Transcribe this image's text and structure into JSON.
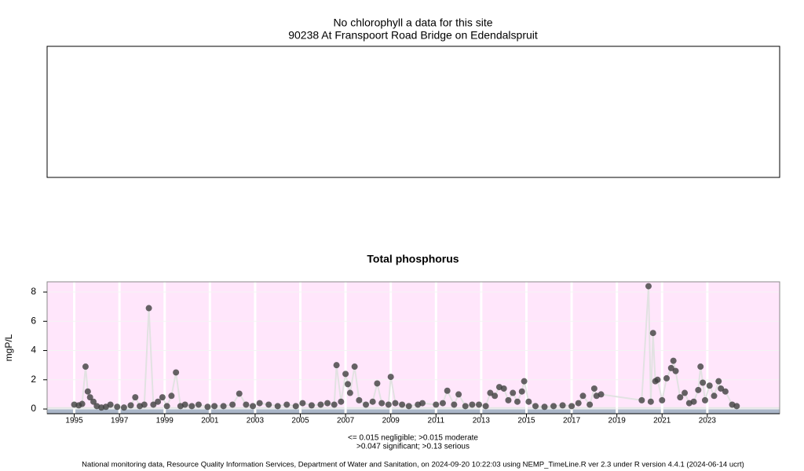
{
  "chart_data": [
    {
      "type": "empty",
      "title": "No chlorophyll a data for this site",
      "subtitle": "90238 At Franspoort Road Bridge on Edendalspruit"
    },
    {
      "type": "scatter",
      "title": "Total phosphorus",
      "ylabel": "mgP/L",
      "xlim": [
        1993.8,
        2026.2
      ],
      "ylim": [
        -0.32,
        8.7
      ],
      "xticks": [
        1995,
        1997,
        1999,
        2001,
        2003,
        2005,
        2007,
        2009,
        2011,
        2013,
        2015,
        2017,
        2019,
        2021,
        2023
      ],
      "yticks": [
        0,
        2,
        4,
        6,
        8
      ],
      "thresholds": [
        0.015,
        0.047,
        0.13
      ],
      "band_colors": [
        "#aab6c8",
        "#d4d8dc",
        "#e4e4e4",
        "#ffe6fb"
      ],
      "grid": true,
      "caption": [
        "<= 0.015 negligible; >0.015 moderate",
        ">0.047 significant; >0.13 serious"
      ],
      "series": [
        {
          "color": "#404040",
          "line_color": "#e2e2e2",
          "x": [
            1995.0,
            1995.2,
            1995.35,
            1995.5,
            1995.6,
            1995.7,
            1995.85,
            1996.0,
            1996.2,
            1996.4,
            1996.6,
            1996.9,
            1997.2,
            1997.5,
            1997.7,
            1997.9,
            1998.1,
            1998.3,
            1998.5,
            1998.7,
            1998.9,
            1999.1,
            1999.3,
            1999.5,
            1999.7,
            1999.9,
            2000.2,
            2000.5,
            2000.9,
            2001.2,
            2001.6,
            2002.0,
            2002.3,
            2002.6,
            2002.9,
            2003.2,
            2003.6,
            2004.0,
            2004.4,
            2004.8,
            2005.1,
            2005.5,
            2005.9,
            2006.2,
            2006.5,
            2006.6,
            2006.8,
            2007.0,
            2007.1,
            2007.2,
            2007.4,
            2007.6,
            2007.9,
            2008.2,
            2008.4,
            2008.6,
            2008.9,
            2009.0,
            2009.2,
            2009.5,
            2009.8,
            2010.2,
            2010.4,
            2011.0,
            2011.3,
            2011.5,
            2011.8,
            2012.0,
            2012.3,
            2012.6,
            2012.9,
            2013.2,
            2013.4,
            2013.6,
            2013.8,
            2014.0,
            2014.2,
            2014.4,
            2014.6,
            2014.8,
            2014.9,
            2015.1,
            2015.4,
            2015.8,
            2016.2,
            2016.6,
            2017.0,
            2017.3,
            2017.5,
            2017.8,
            2018.0,
            2018.1,
            2018.3,
            2020.1,
            2020.4,
            2020.5,
            2020.6,
            2020.7,
            2020.8,
            2021.0,
            2021.2,
            2021.4,
            2021.5,
            2021.6,
            2021.8,
            2022.0,
            2022.2,
            2022.4,
            2022.6,
            2022.7,
            2022.8,
            2022.9,
            2023.1,
            2023.3,
            2023.5,
            2023.6,
            2023.8,
            2024.1,
            2024.3
          ],
          "values": [
            0.3,
            0.25,
            0.35,
            2.9,
            1.2,
            0.8,
            0.5,
            0.2,
            0.1,
            0.15,
            0.3,
            0.15,
            0.1,
            0.25,
            0.8,
            0.2,
            0.3,
            6.9,
            0.3,
            0.5,
            0.8,
            0.2,
            0.9,
            2.5,
            0.2,
            0.3,
            0.2,
            0.3,
            0.15,
            0.2,
            0.2,
            0.3,
            1.05,
            0.3,
            0.2,
            0.4,
            0.3,
            0.2,
            0.3,
            0.2,
            0.4,
            0.25,
            0.3,
            0.4,
            0.3,
            3.0,
            0.5,
            2.4,
            1.7,
            1.1,
            2.9,
            0.6,
            0.3,
            0.5,
            1.75,
            0.4,
            0.3,
            2.2,
            0.4,
            0.3,
            0.2,
            0.3,
            0.4,
            0.3,
            0.4,
            1.25,
            0.3,
            1.0,
            0.2,
            0.3,
            0.3,
            0.2,
            1.1,
            0.9,
            1.5,
            1.4,
            0.6,
            1.1,
            0.5,
            1.2,
            1.9,
            0.5,
            0.2,
            0.15,
            0.2,
            0.25,
            0.2,
            0.4,
            0.9,
            0.3,
            1.4,
            0.9,
            1.0,
            0.6,
            8.4,
            0.5,
            5.2,
            1.9,
            2.0,
            0.6,
            2.1,
            2.8,
            3.3,
            2.6,
            0.8,
            1.1,
            0.4,
            0.5,
            1.3,
            2.9,
            1.8,
            0.6,
            1.6,
            0.9,
            1.9,
            1.4,
            1.2,
            0.3,
            0.2
          ]
        }
      ]
    }
  ],
  "footer": "National monitoring data, Resource Quality Information Services, Department of Water and Sanitation, on 2024-09-20 10:22:03 using NEMP_TimeLine.R ver 2.3 under R version 4.4.1 (2024-06-14 ucrt)"
}
